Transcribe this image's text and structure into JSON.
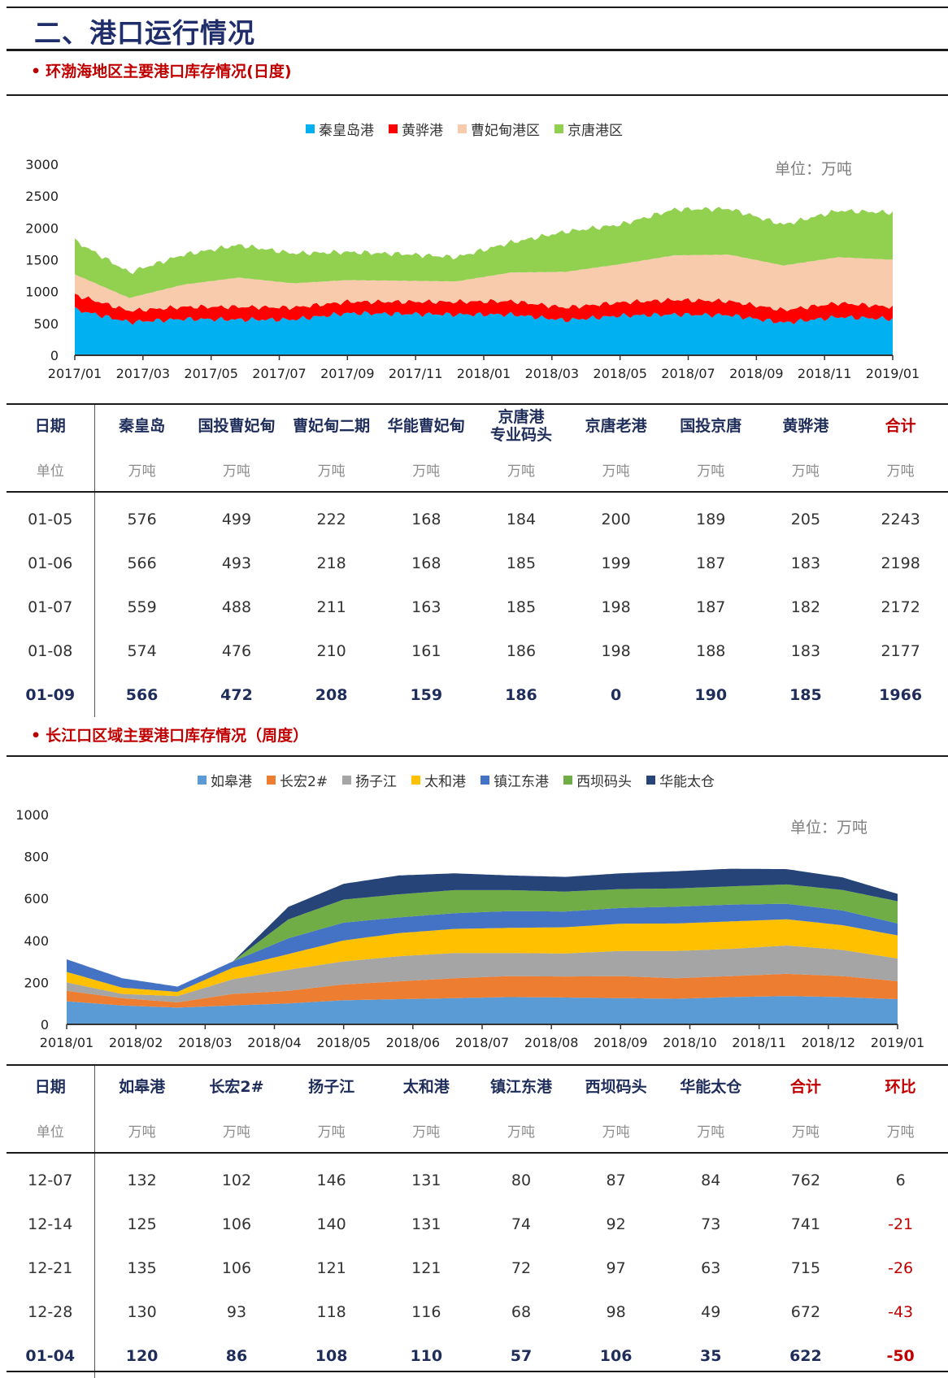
{
  "page_title": "二、港口运行情况",
  "section1": {
    "title": "环渤海地区主要港口库存情况(日度)",
    "unit_note": "单位：万吨",
    "table": {
      "headers": [
        "日期",
        "秦皇岛",
        "国投曹妃甸",
        "曹妃甸二期",
        "华能曹妃甸",
        "京唐港\n专业码头",
        "京唐老港",
        "国投京唐",
        "黄骅港",
        "合计"
      ],
      "unit_label": "单位",
      "unit": "万吨",
      "rows": [
        [
          "01-05",
          "576",
          "499",
          "222",
          "168",
          "184",
          "200",
          "189",
          "205",
          "2243"
        ],
        [
          "01-06",
          "566",
          "493",
          "218",
          "168",
          "185",
          "199",
          "187",
          "183",
          "2198"
        ],
        [
          "01-07",
          "559",
          "488",
          "211",
          "163",
          "185",
          "198",
          "187",
          "182",
          "2172"
        ],
        [
          "01-08",
          "574",
          "476",
          "210",
          "161",
          "186",
          "198",
          "188",
          "183",
          "2177"
        ],
        [
          "01-09",
          "566",
          "472",
          "208",
          "159",
          "186",
          "0",
          "190",
          "185",
          "1966"
        ]
      ]
    }
  },
  "section2": {
    "title": "长江口区域主要港口库存情况（周度）",
    "unit_note": "单位：万吨",
    "table": {
      "headers": [
        "日期",
        "如皋港",
        "长宏2#",
        "扬子江",
        "太和港",
        "镇江东港",
        "西坝码头",
        "华能太仓",
        "合计",
        "环比"
      ],
      "unit_label": "单位",
      "unit": "万吨",
      "rows": [
        [
          "12-07",
          "132",
          "102",
          "146",
          "131",
          "80",
          "87",
          "84",
          "762",
          "6"
        ],
        [
          "12-14",
          "125",
          "106",
          "140",
          "131",
          "74",
          "92",
          "73",
          "741",
          "-21"
        ],
        [
          "12-21",
          "135",
          "106",
          "121",
          "121",
          "72",
          "97",
          "63",
          "715",
          "-26"
        ],
        [
          "12-28",
          "130",
          "93",
          "118",
          "116",
          "68",
          "98",
          "49",
          "672",
          "-43"
        ],
        [
          "01-04",
          "120",
          "86",
          "108",
          "110",
          "57",
          "106",
          "35",
          "622",
          "-50"
        ]
      ]
    }
  },
  "chart_data": [
    {
      "type": "area",
      "stacked": true,
      "title": "",
      "xlabel": "",
      "ylabel": "",
      "ylim": [
        0,
        3000
      ],
      "yticks": [
        0,
        500,
        1000,
        1500,
        2000,
        2500,
        3000
      ],
      "xticks": [
        "2017/01",
        "2017/03",
        "2017/05",
        "2017/07",
        "2017/09",
        "2017/11",
        "2018/01",
        "2018/03",
        "2018/05",
        "2018/07",
        "2018/09",
        "2018/11",
        "2019/01"
      ],
      "legend_position": "top",
      "series": [
        {
          "name": "秦皇岛港",
          "color": "#00b0f0",
          "values": [
            720,
            520,
            570,
            560,
            560,
            660,
            650,
            640,
            640,
            550,
            620,
            640,
            630,
            510,
            600,
            570
          ]
        },
        {
          "name": "黄骅港",
          "color": "#ff0000",
          "values": [
            230,
            180,
            190,
            200,
            190,
            180,
            190,
            200,
            210,
            200,
            210,
            230,
            220,
            200,
            220,
            190
          ]
        },
        {
          "name": "曹妃甸港区",
          "color": "#f8cbad",
          "values": [
            320,
            200,
            350,
            460,
            380,
            340,
            330,
            320,
            450,
            560,
            600,
            700,
            730,
            700,
            720,
            740
          ]
        },
        {
          "name": "京唐港区",
          "color": "#92d050",
          "values": [
            530,
            400,
            470,
            510,
            470,
            440,
            420,
            380,
            470,
            630,
            620,
            720,
            720,
            640,
            730,
            740
          ]
        }
      ],
      "x": [
        "2017/01",
        "2017/02",
        "2017/04",
        "2017/06",
        "2017/08",
        "2017/10",
        "2017/12",
        "2018/02",
        "2018/04",
        "2018/05",
        "2018/06",
        "2018/08",
        "2018/09",
        "2018/11",
        "2018/12",
        "2019/01"
      ]
    },
    {
      "type": "area",
      "stacked": true,
      "title": "",
      "xlabel": "",
      "ylabel": "",
      "ylim": [
        0,
        1000
      ],
      "yticks": [
        0,
        200,
        400,
        600,
        800,
        1000
      ],
      "xticks": [
        "2018/01",
        "2018/02",
        "2018/03",
        "2018/04",
        "2018/05",
        "2018/06",
        "2018/07",
        "2018/08",
        "2018/09",
        "2018/10",
        "2018/11",
        "2018/12",
        "2019/01"
      ],
      "legend_position": "top",
      "series": [
        {
          "name": "如皋港",
          "color": "#5b9bd5",
          "values": [
            110,
            90,
            80,
            90,
            100,
            115,
            120,
            125,
            130,
            128,
            125,
            122,
            130,
            135,
            130,
            120
          ]
        },
        {
          "name": "长宏2#",
          "color": "#ed7d31",
          "values": [
            50,
            35,
            25,
            55,
            60,
            75,
            85,
            95,
            100,
            100,
            105,
            98,
            100,
            106,
            100,
            86
          ]
        },
        {
          "name": "扬子江",
          "color": "#a5a5a5",
          "values": [
            40,
            20,
            30,
            70,
            100,
            110,
            120,
            120,
            110,
            110,
            120,
            130,
            130,
            135,
            125,
            108
          ]
        },
        {
          "name": "太和港",
          "color": "#ffc000",
          "values": [
            50,
            30,
            20,
            55,
            75,
            100,
            110,
            115,
            120,
            125,
            130,
            131,
            131,
            125,
            118,
            110
          ]
        },
        {
          "name": "镇江东港",
          "color": "#4472c4",
          "values": [
            60,
            45,
            25,
            30,
            75,
            85,
            75,
            75,
            80,
            75,
            75,
            80,
            80,
            74,
            70,
            57
          ]
        },
        {
          "name": "西坝码头",
          "color": "#70ad47",
          "values": [
            0,
            0,
            0,
            0,
            90,
            110,
            110,
            110,
            100,
            95,
            90,
            87,
            87,
            92,
            98,
            106
          ]
        },
        {
          "name": "华能太仓",
          "color": "#264478",
          "values": [
            0,
            0,
            0,
            0,
            60,
            75,
            90,
            80,
            70,
            70,
            75,
            82,
            84,
            73,
            60,
            35
          ]
        }
      ],
      "x": [
        "2018/01",
        "2018/01",
        "2018/02",
        "2018/03",
        "2018/04",
        "2018/05",
        "2018/06",
        "2018/07",
        "2018/08",
        "2018/09",
        "2018/10",
        "2018/11",
        "2018/12",
        "2018/12",
        "2018/12",
        "2019/01"
      ]
    }
  ]
}
